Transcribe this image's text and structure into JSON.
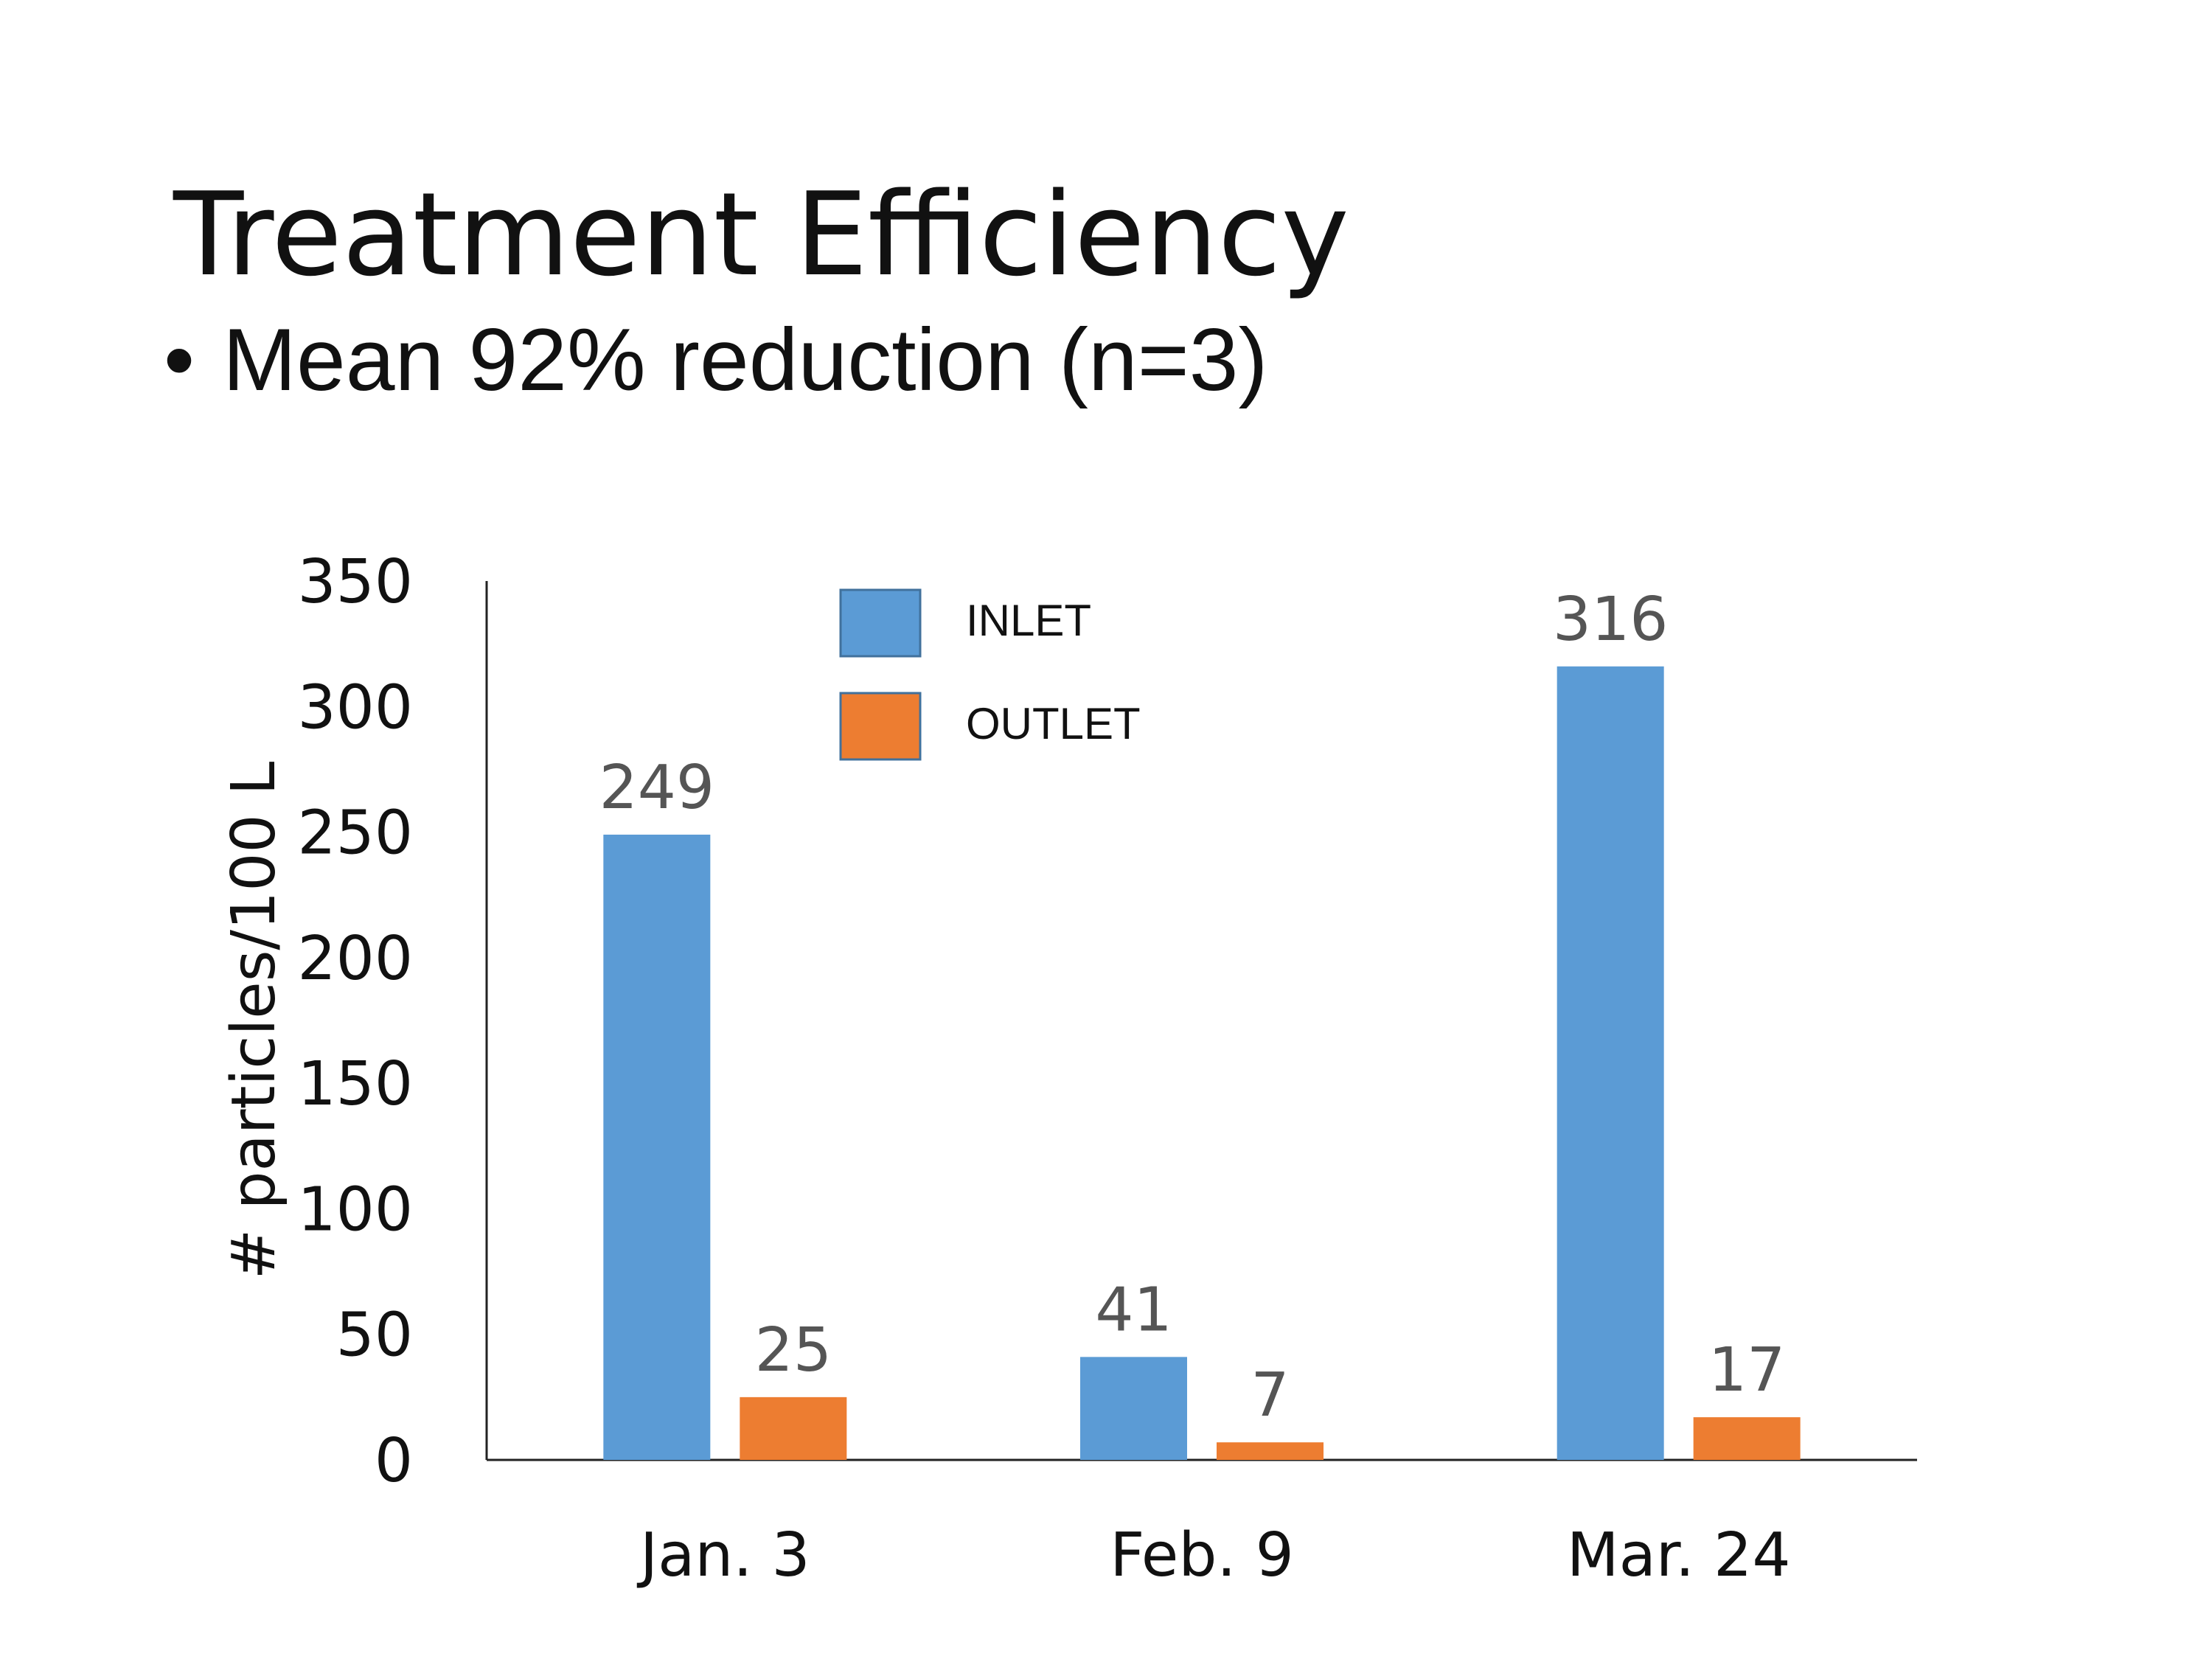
{
  "slide": {
    "title": "Treatment Efficiency",
    "bullet_marker": "•",
    "bullet": "Mean 92% reduction (n=3)"
  },
  "chart_data": {
    "type": "bar",
    "categories": [
      "Jan. 3",
      "Feb. 9",
      "Mar. 24"
    ],
    "series": [
      {
        "name": "INLET",
        "values": [
          249,
          41,
          316
        ],
        "color": "#5B9BD5"
      },
      {
        "name": "OUTLET",
        "values": [
          25,
          7,
          17
        ],
        "color": "#ED7D31"
      }
    ],
    "title": "",
    "xlabel": "",
    "ylabel": "# particles/100 L",
    "ylim": [
      0,
      350
    ],
    "yticks": [
      0,
      50,
      100,
      150,
      200,
      250,
      300,
      350
    ],
    "grid": false,
    "legend": "top-center",
    "data_labels": true
  }
}
